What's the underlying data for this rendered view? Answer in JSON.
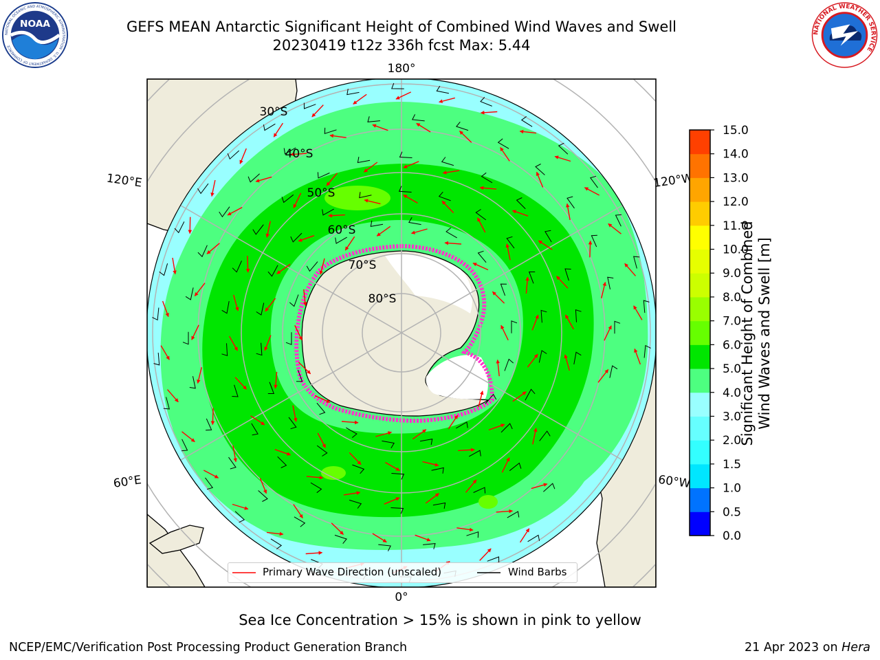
{
  "header": {
    "title_line1": "GEFS MEAN Antarctic Significant Height of Combined Wind Waves and Swell",
    "title_line2": "20230419 t12z 336h fcst   Max: 5.44"
  },
  "logos": {
    "left": {
      "icon": "noaa-logo",
      "text": "NOAA",
      "ring_text": "NATIONAL OCEANIC AND ATMOSPHERIC ADMINISTRATION · U.S. DEPARTMENT OF COMMERCE"
    },
    "right": {
      "icon": "nws-logo",
      "ring_text": "NATIONAL WEATHER SERVICE"
    }
  },
  "map": {
    "projection": "south-polar-stereographic",
    "longitude_labels": [
      "180°",
      "120°E",
      "120°W",
      "60°E",
      "60°W",
      "0°"
    ],
    "latitude_labels": [
      "30°S",
      "40°S",
      "50°S",
      "60°S",
      "70°S",
      "80°S"
    ],
    "colors": {
      "land": "#efecdc",
      "ice_shelf": "#ffffff",
      "swh_2_3": "#99ffff",
      "swh_3_4": "#4dff80",
      "swh_4_5": "#00e600",
      "swh_5_6": "#66ff00",
      "sea_ice": "#ff33cc",
      "wave_arrow": "#ff0000",
      "wind_barb": "#000000",
      "grid": "#b3b3b3"
    }
  },
  "legend": {
    "wave_label": "Primary Wave Direction (unscaled)",
    "wind_label": "Wind Barbs"
  },
  "colorbar": {
    "label_line1": "Significant Height of Combined",
    "label_line2": "Wind Waves and Swell [m]",
    "ticks": [
      "0.0",
      "0.5",
      "1.0",
      "1.5",
      "2.0",
      "3.0",
      "4.0",
      "5.0",
      "6.0",
      "7.0",
      "8.0",
      "9.0",
      "10.0",
      "11.0",
      "12.0",
      "13.0",
      "14.0",
      "15.0"
    ],
    "colors": [
      "#0000ff",
      "#0073ff",
      "#00e6ff",
      "#33ffff",
      "#66ffff",
      "#99ffff",
      "#4dff80",
      "#00e600",
      "#66ff00",
      "#99ff00",
      "#ccff00",
      "#e6ff00",
      "#ffff00",
      "#ffcc00",
      "#ffa500",
      "#ff7300",
      "#ff4000",
      "#ff0000"
    ]
  },
  "footer": {
    "note": "Sea Ice Concentration > 15% is shown in pink to yellow",
    "credit": "NCEP/EMC/Verification Post Processing Product Generation Branch",
    "date": "21 Apr 2023 on",
    "machine": "Hera"
  }
}
